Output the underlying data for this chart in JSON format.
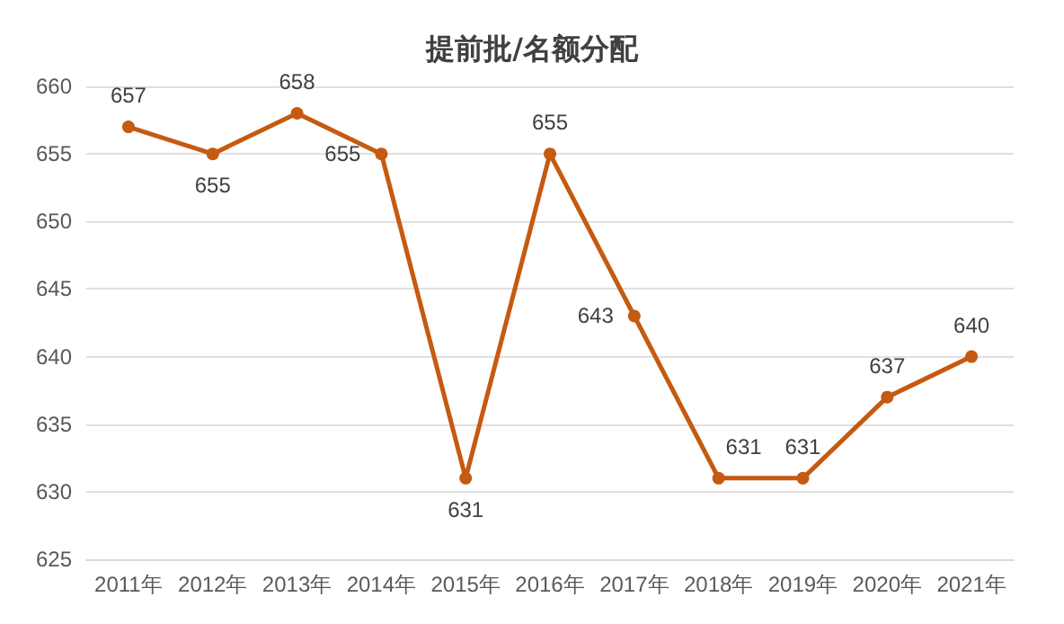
{
  "chart_data": {
    "type": "line",
    "title": "提前批/名额分配",
    "categories": [
      "2011年",
      "2012年",
      "2013年",
      "2014年",
      "2015年",
      "2016年",
      "2017年",
      "2018年",
      "2019年",
      "2020年",
      "2021年"
    ],
    "series": [
      {
        "color": "#c55a11",
        "values": [
          657,
          655,
          658,
          655,
          631,
          655,
          643,
          631,
          631,
          637,
          640
        ]
      }
    ],
    "ylim": [
      625,
      660
    ],
    "yticks": [
      625,
      630,
      635,
      640,
      645,
      650,
      655,
      660
    ],
    "grid": "y",
    "data_labels": true,
    "marker": "circle"
  }
}
